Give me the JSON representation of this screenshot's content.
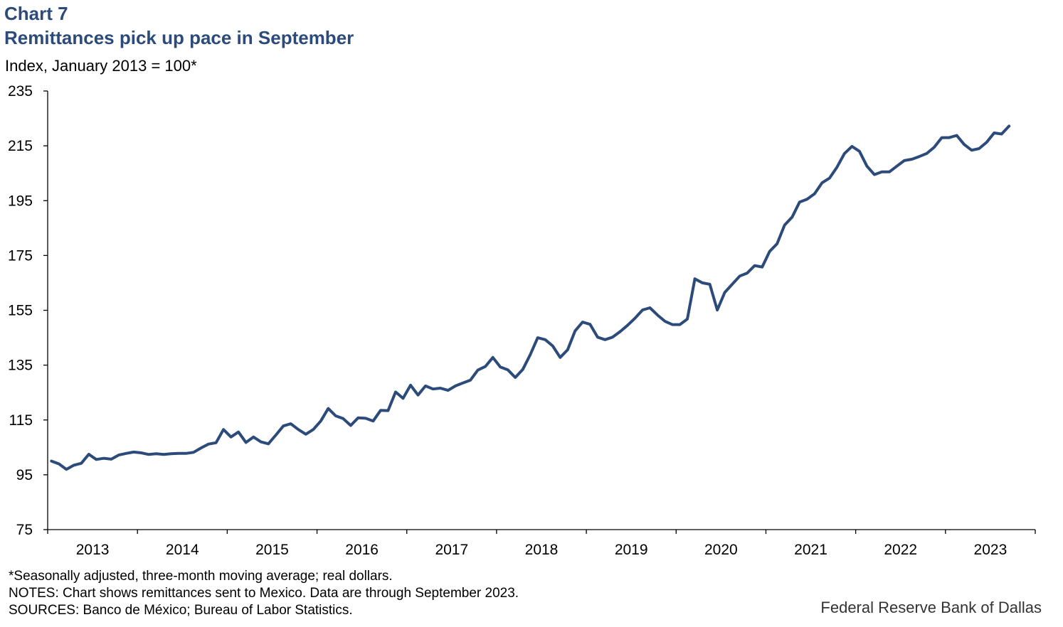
{
  "chart_label": "Chart 7",
  "chart_data": {
    "type": "line",
    "title": "Remittances pick up pace in September",
    "ylabel": "Index, January 2013 = 100*",
    "xlabel": "",
    "ylim": [
      75,
      235
    ],
    "yticks": [
      75,
      95,
      115,
      135,
      155,
      175,
      195,
      215,
      235
    ],
    "xticks": [
      "2013",
      "2014",
      "2015",
      "2016",
      "2017",
      "2018",
      "2019",
      "2020",
      "2021",
      "2022",
      "2023"
    ],
    "grid": false,
    "color": "#2c4b7a",
    "x_start": "2013-01",
    "x_end": "2023-09",
    "frequency": "monthly",
    "series": [
      {
        "values": [
          100,
          99,
          97,
          98.5,
          99.2,
          102.5,
          100.6,
          101,
          100.7,
          102.2,
          102.8,
          103.3,
          103,
          102.4,
          102.7,
          102.4,
          102.7,
          102.8,
          102.8,
          103.2,
          104.8,
          106.2,
          106.7,
          111.5,
          108.8,
          110.6,
          106.8,
          108.8,
          107,
          106.3,
          109.5,
          112.8,
          113.6,
          111.5,
          109.8,
          111.5,
          114.6,
          119.2,
          116.5,
          115.5,
          113,
          115.8,
          115.6,
          114.6,
          118.5,
          118.4,
          125.2,
          122.9,
          127.7,
          124.1,
          127.4,
          126.3,
          126.6,
          125.8,
          127.4,
          128.5,
          129.5,
          133.2,
          134.5,
          137.8,
          134.3,
          133.3,
          130.5,
          133.4,
          138.8,
          145,
          144.3,
          142,
          137.8,
          140.6,
          147.5,
          150.7,
          149.9,
          145.2,
          144.3,
          145.2,
          147.2,
          149.5,
          152.1,
          155.1,
          155.9,
          153.3,
          151,
          149.8,
          149.8,
          151.8,
          166.5,
          165,
          164.5,
          155.1,
          161.5,
          164.5,
          167.5,
          168.6,
          171.3,
          170.8,
          176.5,
          179.3,
          186.1,
          189,
          194.5,
          195.5,
          197.5,
          201.5,
          203.2,
          207.2,
          212.2,
          214.8,
          213,
          207.6,
          204.5,
          205.5,
          205.5,
          207.6,
          209.6,
          210.1,
          211.1,
          212.2,
          214.5,
          218,
          218,
          218.8,
          215.5,
          213.4,
          214,
          216.3,
          219.7,
          219.3,
          222.2
        ]
      }
    ]
  },
  "footnotes": {
    "note1": "*Seasonally adjusted, three-month moving average; real dollars.",
    "note2": "NOTES: Chart shows remittances sent to Mexico. Data are through September 2023.",
    "note3": "SOURCES: Banco de México; Bureau of Labor Statistics."
  },
  "credit": "Federal Reserve Bank of Dallas"
}
